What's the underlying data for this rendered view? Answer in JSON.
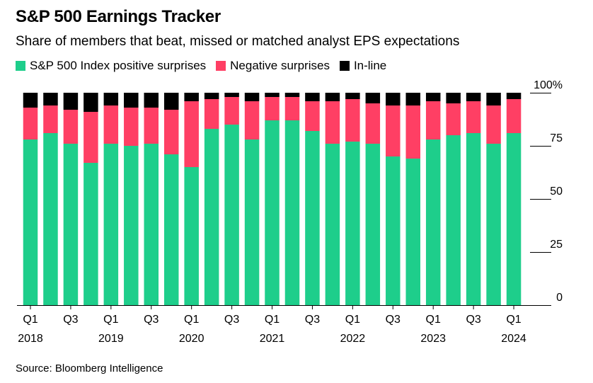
{
  "title": "S&P 500 Earnings Tracker",
  "subtitle": "Share of members that beat, missed or matched analyst EPS expectations",
  "source": "Source: Bloomberg Intelligence",
  "colors": {
    "positive": "#1ece8b",
    "negative": "#ff3f64",
    "inline": "#000000"
  },
  "chart_data": {
    "type": "bar",
    "stacked": true,
    "categories": [
      "Q1 2018",
      "Q2 2018",
      "Q3 2018",
      "Q4 2018",
      "Q1 2019",
      "Q2 2019",
      "Q3 2019",
      "Q4 2019",
      "Q1 2020",
      "Q2 2020",
      "Q3 2020",
      "Q4 2020",
      "Q1 2021",
      "Q2 2021",
      "Q3 2021",
      "Q4 2021",
      "Q1 2022",
      "Q2 2022",
      "Q3 2022",
      "Q4 2022",
      "Q1 2023",
      "Q2 2023",
      "Q3 2023",
      "Q4 2023",
      "Q1 2024"
    ],
    "series": [
      {
        "name": "S&P 500 Index positive surprises",
        "key": "positive",
        "values": [
          78,
          81,
          76,
          67,
          76,
          75,
          76,
          71,
          65,
          83,
          85,
          78,
          87,
          87,
          82,
          76,
          77,
          76,
          70,
          69,
          78,
          80,
          81,
          76,
          81
        ]
      },
      {
        "name": "Negative surprises",
        "key": "negative",
        "values": [
          15,
          13,
          16,
          24,
          18,
          18,
          17,
          21,
          31,
          14,
          13,
          18,
          11,
          11,
          14,
          20,
          20,
          19,
          24,
          25,
          18,
          15,
          15,
          18,
          16
        ]
      },
      {
        "name": "In-line",
        "key": "inline",
        "values": [
          7,
          6,
          8,
          9,
          6,
          7,
          7,
          8,
          4,
          3,
          2,
          4,
          2,
          2,
          4,
          4,
          3,
          5,
          6,
          6,
          4,
          5,
          4,
          6,
          3
        ]
      }
    ],
    "ylim": [
      0,
      100
    ],
    "yticks": [
      {
        "value": 0,
        "label": "0"
      },
      {
        "value": 25,
        "label": "25"
      },
      {
        "value": 50,
        "label": "50"
      },
      {
        "value": 75,
        "label": "75"
      },
      {
        "value": 100,
        "label": "100%"
      }
    ],
    "xticks": [
      {
        "index": 0,
        "quarter": "Q1",
        "year": "2018"
      },
      {
        "index": 2,
        "quarter": "Q3",
        "year": ""
      },
      {
        "index": 4,
        "quarter": "Q1",
        "year": "2019"
      },
      {
        "index": 6,
        "quarter": "Q3",
        "year": ""
      },
      {
        "index": 8,
        "quarter": "Q1",
        "year": "2020"
      },
      {
        "index": 10,
        "quarter": "Q3",
        "year": ""
      },
      {
        "index": 12,
        "quarter": "Q1",
        "year": "2021"
      },
      {
        "index": 14,
        "quarter": "Q3",
        "year": ""
      },
      {
        "index": 16,
        "quarter": "Q1",
        "year": "2022"
      },
      {
        "index": 18,
        "quarter": "Q3",
        "year": ""
      },
      {
        "index": 20,
        "quarter": "Q1",
        "year": "2023"
      },
      {
        "index": 22,
        "quarter": "Q3",
        "year": ""
      },
      {
        "index": 24,
        "quarter": "Q1",
        "year": "2024"
      }
    ],
    "legend_position": "top-left",
    "grid": false
  }
}
